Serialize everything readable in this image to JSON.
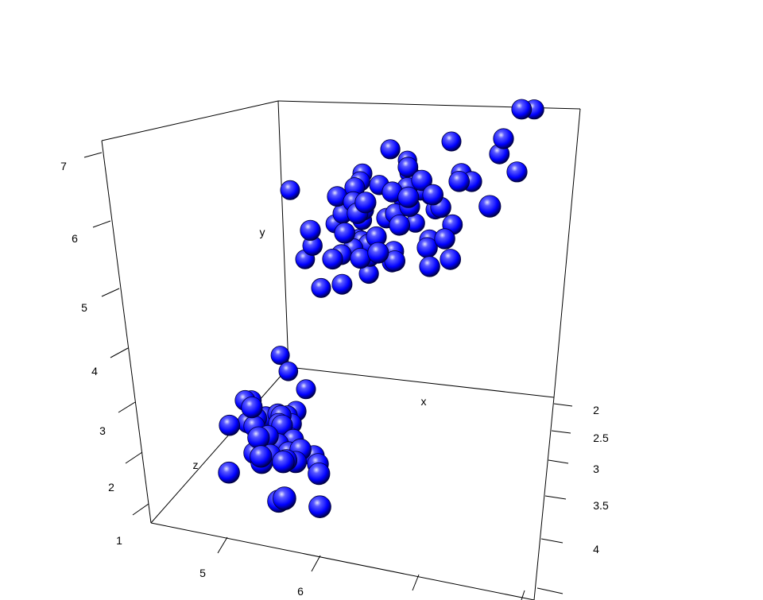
{
  "chart_data": {
    "type": "scatter",
    "subtype": "3d-sphere-scatter",
    "title": "",
    "xlabel": "x",
    "ylabel": "y",
    "zlabel": "z",
    "colors": {
      "sphere": "#0000ff",
      "sphere_dark": "#000033",
      "sphere_highlight": "#e6e6ff",
      "background": "#ffffff",
      "axis": "#000000"
    },
    "x_ticks": [
      "5",
      "6"
    ],
    "y_ticks": [
      "1",
      "2",
      "3",
      "4",
      "5",
      "6",
      "7"
    ],
    "z_ticks": [
      "2",
      "2.5",
      "3",
      "3.5",
      "4"
    ],
    "ylim": [
      1,
      7.3
    ],
    "zlim": [
      2,
      4.5
    ],
    "points": [
      [
        4.8,
        1.3,
        2.5
      ],
      [
        4.3,
        1.3,
        2.1
      ],
      [
        5.0,
        1.6,
        3.3
      ],
      [
        4.6,
        1.2,
        2.9
      ],
      [
        5.4,
        1.6,
        3.6
      ],
      [
        4.9,
        1.4,
        3.6
      ],
      [
        5.0,
        1.4,
        3.1
      ],
      [
        4.4,
        1.3,
        2.8
      ],
      [
        5.1,
        1.7,
        3.4
      ],
      [
        4.7,
        1.5,
        3.2
      ],
      [
        5.2,
        1.5,
        3.4
      ],
      [
        4.8,
        1.4,
        3.0
      ],
      [
        5.5,
        1.3,
        3.5
      ],
      [
        5.1,
        1.5,
        3.5
      ],
      [
        5.0,
        1.5,
        3.0
      ],
      [
        5.4,
        1.7,
        3.9
      ],
      [
        4.6,
        1.0,
        3.6
      ],
      [
        5.7,
        1.5,
        3.8
      ],
      [
        5.2,
        1.4,
        3.5
      ],
      [
        5.1,
        1.5,
        3.8
      ],
      [
        4.9,
        1.5,
        3.1
      ],
      [
        5.0,
        1.2,
        3.2
      ],
      [
        5.4,
        1.5,
        3.7
      ],
      [
        4.8,
        1.6,
        3.4
      ],
      [
        4.9,
        1.4,
        3.0
      ],
      [
        4.4,
        1.4,
        2.9
      ],
      [
        5.0,
        1.6,
        3.5
      ],
      [
        5.1,
        1.4,
        3.3
      ],
      [
        4.8,
        1.9,
        3.4
      ],
      [
        5.5,
        1.4,
        4.2
      ],
      [
        5.7,
        1.7,
        4.4
      ],
      [
        5.8,
        1.2,
        4.0
      ],
      [
        4.5,
        1.3,
        2.3
      ],
      [
        5.3,
        1.5,
        3.7
      ],
      [
        5.1,
        1.9,
        3.8
      ],
      [
        5.1,
        1.6,
        3.8
      ],
      [
        4.6,
        1.4,
        3.2
      ],
      [
        4.4,
        1.3,
        3.2
      ],
      [
        5.0,
        1.3,
        3.5
      ],
      [
        5.4,
        1.3,
        3.4
      ],
      [
        4.9,
        3.3,
        2.4
      ],
      [
        5.0,
        3.5,
        2.0
      ],
      [
        5.1,
        3.0,
        2.5
      ],
      [
        5.2,
        3.9,
        2.7
      ],
      [
        5.5,
        3.8,
        2.4
      ],
      [
        5.5,
        4.0,
        2.3
      ],
      [
        5.6,
        3.6,
        2.9
      ],
      [
        5.6,
        3.9,
        2.5
      ],
      [
        5.7,
        3.5,
        2.6
      ],
      [
        5.8,
        3.9,
        2.7
      ],
      [
        5.8,
        4.1,
        2.7
      ],
      [
        6.0,
        4.5,
        2.2
      ],
      [
        6.0,
        4.0,
        2.2
      ],
      [
        6.1,
        4.7,
        2.8
      ],
      [
        6.1,
        4.0,
        2.8
      ],
      [
        6.2,
        4.5,
        2.2
      ],
      [
        6.3,
        4.9,
        2.5
      ],
      [
        6.4,
        4.5,
        3.2
      ],
      [
        6.6,
        4.6,
        2.9
      ],
      [
        6.7,
        4.7,
        3.1
      ],
      [
        6.8,
        4.8,
        2.8
      ],
      [
        6.9,
        4.9,
        3.1
      ],
      [
        7.0,
        4.7,
        3.2
      ],
      [
        5.4,
        4.5,
        3.0
      ],
      [
        6.3,
        4.7,
        3.3
      ],
      [
        5.7,
        4.2,
        3.0
      ],
      [
        5.9,
        4.2,
        3.0
      ],
      [
        6.0,
        5.1,
        2.7
      ],
      [
        6.1,
        4.6,
        3.0
      ],
      [
        6.3,
        4.4,
        2.3
      ],
      [
        5.6,
        4.1,
        3.0
      ],
      [
        5.5,
        4.4,
        2.6
      ],
      [
        6.2,
        4.3,
        2.9
      ],
      [
        5.7,
        4.1,
        2.8
      ],
      [
        6.7,
        4.4,
        3.1
      ],
      [
        4.9,
        4.5,
        2.5
      ],
      [
        5.6,
        4.9,
        2.8
      ],
      [
        5.7,
        5.0,
        2.5
      ],
      [
        5.8,
        5.1,
        2.7
      ],
      [
        5.8,
        5.1,
        2.8
      ],
      [
        5.9,
        4.8,
        3.2
      ],
      [
        5.9,
        5.1,
        3.0
      ],
      [
        6.0,
        4.8,
        2.2
      ],
      [
        6.0,
        5.0,
        3.0
      ],
      [
        6.1,
        5.6,
        2.6
      ],
      [
        6.2,
        5.4,
        3.4
      ],
      [
        6.3,
        5.6,
        3.4
      ],
      [
        6.3,
        5.1,
        2.8
      ],
      [
        6.4,
        5.3,
        2.7
      ],
      [
        6.4,
        5.6,
        2.8
      ],
      [
        6.5,
        5.1,
        3.2
      ],
      [
        6.5,
        5.2,
        3.0
      ],
      [
        6.7,
        5.8,
        2.5
      ],
      [
        6.7,
        5.7,
        3.3
      ],
      [
        6.8,
        5.9,
        3.2
      ],
      [
        6.9,
        5.7,
        3.2
      ],
      [
        7.1,
        5.9,
        3.0
      ],
      [
        7.2,
        6.0,
        3.2
      ],
      [
        7.2,
        5.8,
        3.0
      ],
      [
        7.4,
        6.1,
        2.8
      ],
      [
        7.6,
        6.6,
        3.0
      ],
      [
        7.7,
        6.7,
        2.6
      ],
      [
        7.7,
        6.9,
        2.8
      ],
      [
        7.7,
        6.1,
        3.0
      ],
      [
        7.9,
        6.4,
        3.8
      ],
      [
        6.9,
        5.4,
        3.1
      ],
      [
        6.4,
        5.5,
        3.1
      ],
      [
        6.5,
        5.5,
        3.0
      ],
      [
        6.0,
        5.0,
        2.2
      ],
      [
        6.2,
        4.8,
        2.8
      ]
    ]
  }
}
